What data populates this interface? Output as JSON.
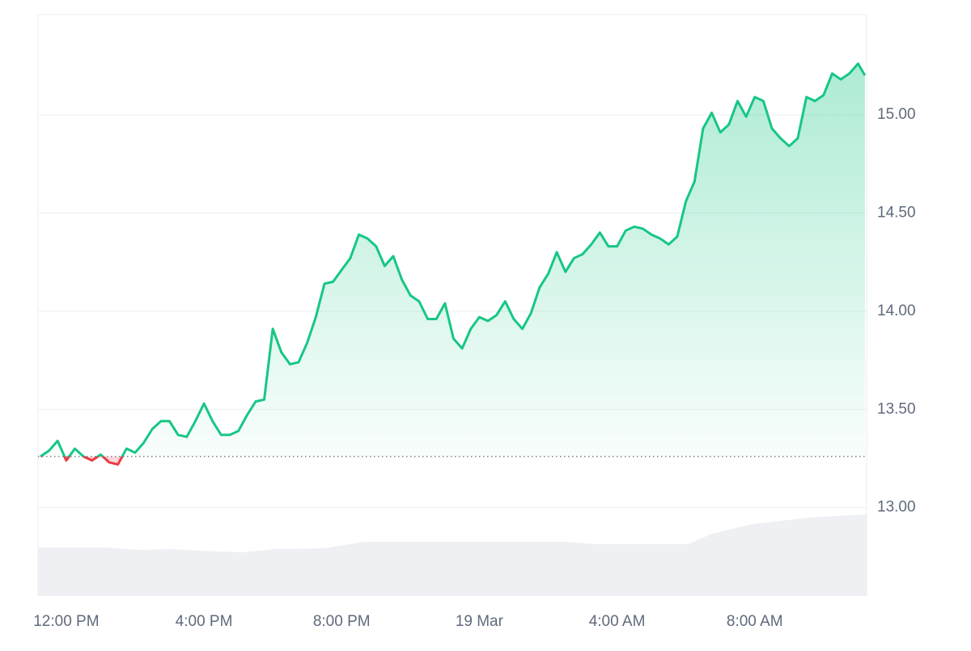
{
  "chart_data": {
    "type": "line",
    "x": [
      11.25,
      11.5,
      11.75,
      12,
      12.25,
      12.5,
      12.75,
      13,
      13.25,
      13.5,
      13.75,
      14,
      14.25,
      14.5,
      14.75,
      15,
      15.25,
      15.5,
      15.75,
      16,
      16.25,
      16.5,
      16.75,
      17,
      17.25,
      17.5,
      17.75,
      18,
      18.25,
      18.5,
      18.75,
      19,
      19.25,
      19.5,
      19.75,
      20,
      20.25,
      20.5,
      20.75,
      21,
      21.25,
      21.5,
      21.75,
      22,
      22.25,
      22.5,
      22.75,
      23,
      23.25,
      23.5,
      23.75,
      24,
      24.25,
      24.5,
      24.75,
      25,
      25.25,
      25.5,
      25.75,
      26,
      26.25,
      26.5,
      26.75,
      27,
      27.25,
      27.5,
      27.75,
      28,
      28.25,
      28.5,
      28.75,
      29,
      29.25,
      29.5,
      29.75,
      30,
      30.25,
      30.5,
      30.75,
      31,
      31.25,
      31.5,
      31.75,
      32,
      32.25,
      32.5,
      32.75,
      33,
      33.25,
      33.5,
      33.75,
      34,
      34.25,
      34.5,
      34.75,
      35,
      35.2
    ],
    "series": [
      {
        "values": [
          13.26,
          13.29,
          13.34,
          13.24,
          13.3,
          13.26,
          13.24,
          13.27,
          13.23,
          13.22,
          13.3,
          13.28,
          13.33,
          13.4,
          13.44,
          13.44,
          13.37,
          13.36,
          13.44,
          13.53,
          13.44,
          13.37,
          13.37,
          13.39,
          13.47,
          13.54,
          13.55,
          13.91,
          13.79,
          13.73,
          13.74,
          13.84,
          13.97,
          14.14,
          14.15,
          14.21,
          14.27,
          14.39,
          14.37,
          14.33,
          14.23,
          14.28,
          14.16,
          14.08,
          14.05,
          13.96,
          13.96,
          14.04,
          13.86,
          13.81,
          13.91,
          13.97,
          13.95,
          13.98,
          14.05,
          13.96,
          13.91,
          13.99,
          14.12,
          14.19,
          14.3,
          14.2,
          14.27,
          14.29,
          14.34,
          14.4,
          14.33,
          14.33,
          14.41,
          14.43,
          14.42,
          14.39,
          14.37,
          14.34,
          14.38,
          14.56,
          14.66,
          14.93,
          15.01,
          14.91,
          14.95,
          15.07,
          14.99,
          15.09,
          15.07,
          14.93,
          14.88,
          14.84,
          14.88,
          15.09,
          15.07,
          15.1,
          15.21,
          15.18,
          15.21,
          15.26,
          15.2
        ]
      }
    ],
    "baseline": 13.26,
    "up_color": "#16c784",
    "down_color": "#ea3943",
    "xlim": [
      11.18,
      35.25
    ],
    "xticks": [
      {
        "value": 12,
        "label": "12:00 PM"
      },
      {
        "value": 16,
        "label": "4:00 PM"
      },
      {
        "value": 20,
        "label": "8:00 PM"
      },
      {
        "value": 24,
        "label": "19 Mar"
      },
      {
        "value": 28,
        "label": "4:00 AM"
      },
      {
        "value": 32,
        "label": "8:00 AM"
      }
    ],
    "ylim": [
      12.55,
      15.51
    ],
    "yticks": [
      {
        "value": 13,
        "label": "13.00"
      },
      {
        "value": 13.5,
        "label": "13.50"
      },
      {
        "value": 14,
        "label": "14.00"
      },
      {
        "value": 14.5,
        "label": "14.50"
      },
      {
        "value": 15,
        "label": "15.00"
      }
    ],
    "grid": true
  }
}
